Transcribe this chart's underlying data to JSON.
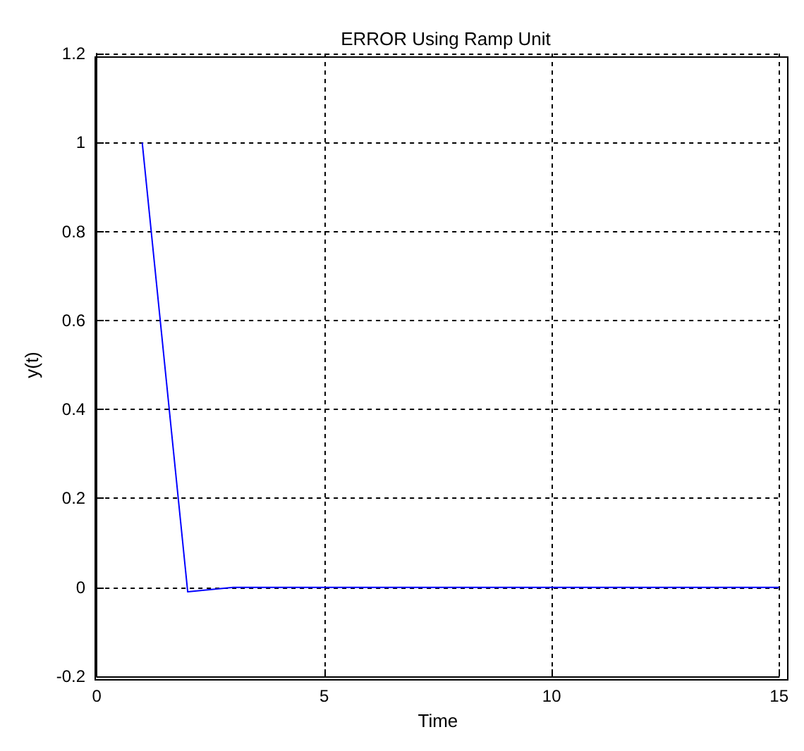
{
  "chart_data": {
    "type": "line",
    "title": "ERROR Using Ramp Unit",
    "xlabel": "Time",
    "ylabel": "y(t)",
    "x": [
      1,
      2,
      3,
      15
    ],
    "series": [
      {
        "color": "#0000ff",
        "values": [
          1,
          -0.01,
          0,
          0
        ]
      }
    ],
    "xlim": [
      0,
      15
    ],
    "xticks": [
      0,
      5,
      10,
      15
    ],
    "ylim": [
      -0.2,
      1.2
    ],
    "yticks": [
      -0.2,
      0,
      0.2,
      0.4,
      0.6,
      0.8,
      1,
      1.2
    ],
    "grid": true,
    "marker": "none",
    "line_style": "solid"
  }
}
